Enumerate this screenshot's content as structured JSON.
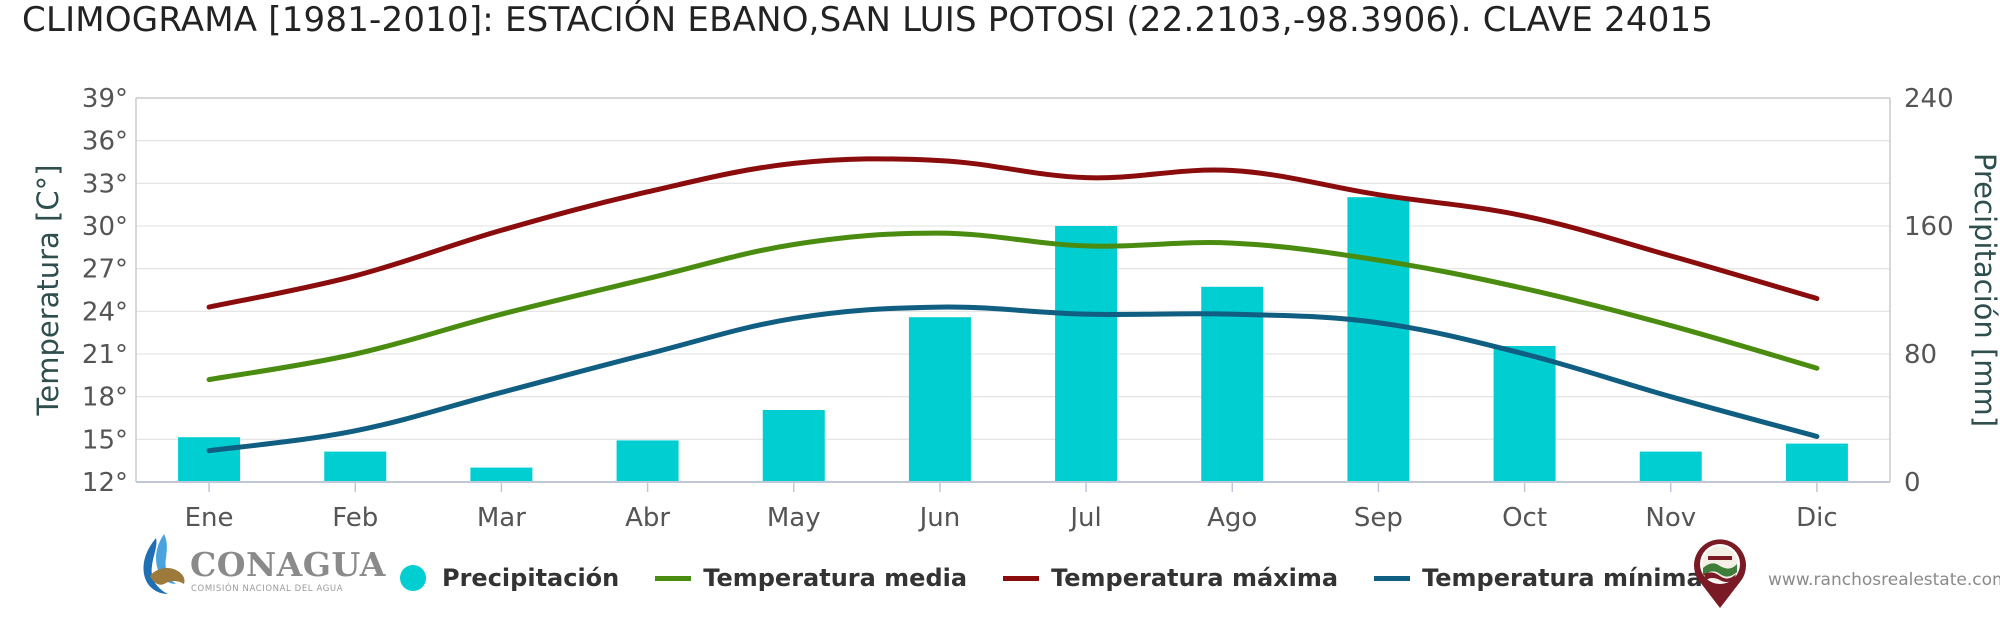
{
  "title": "CLIMOGRAMA [1981-2010]: ESTACIÓN EBANO,SAN LUIS POTOSI (22.2103,-98.3906). CLAVE 24015",
  "colors": {
    "precip": "#00ced1",
    "media": "#4a8c10",
    "maxima": "#8b0c0c",
    "minima": "#105e82"
  },
  "chart_data": {
    "type": "bar+line",
    "categories": [
      "Ene",
      "Feb",
      "Mar",
      "Abr",
      "May",
      "Jun",
      "Jul",
      "Ago",
      "Sep",
      "Oct",
      "Nov",
      "Dic"
    ],
    "y_left": {
      "label": "Temperatura [C°]",
      "min": 12,
      "max": 39,
      "ticks": [
        "12°",
        "15°",
        "18°",
        "21°",
        "24°",
        "27°",
        "30°",
        "33°",
        "36°",
        "39°"
      ]
    },
    "y_right": {
      "label": "Precipitación [mm]",
      "min": 0,
      "max": 240,
      "ticks": [
        "0",
        "80",
        "160",
        "240"
      ]
    },
    "series": [
      {
        "name": "Precipitación",
        "type": "bar",
        "axis": "right",
        "values": [
          28,
          19,
          9,
          26,
          45,
          103,
          160,
          122,
          178,
          85,
          19,
          24
        ]
      },
      {
        "name": "Temperatura media",
        "type": "line",
        "axis": "left",
        "values": [
          19.2,
          21.0,
          23.8,
          26.3,
          28.7,
          29.5,
          28.6,
          28.8,
          27.6,
          25.6,
          23.0,
          20.0
        ]
      },
      {
        "name": "Temperatura máxima",
        "type": "line",
        "axis": "left",
        "values": [
          24.3,
          26.5,
          29.7,
          32.4,
          34.4,
          34.6,
          33.4,
          33.9,
          32.2,
          30.7,
          27.9,
          24.9
        ]
      },
      {
        "name": "Temperatura mínima",
        "type": "line",
        "axis": "left",
        "values": [
          14.2,
          15.6,
          18.3,
          21.0,
          23.5,
          24.3,
          23.8,
          23.8,
          23.2,
          21.0,
          18.0,
          15.2
        ]
      }
    ],
    "grid": true,
    "legend": "bottom"
  },
  "logos": {
    "left_name": "CONAGUA",
    "left_sub": "COMISIÓN NACIONAL DEL AGUA",
    "right_icon": "ranchos-logo-icon",
    "website": "www.ranchosrealestate.com"
  }
}
